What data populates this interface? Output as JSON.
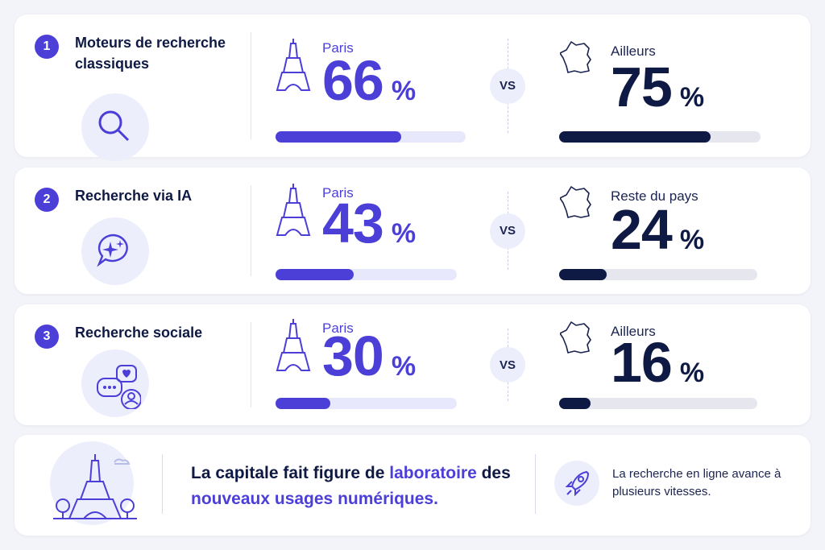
{
  "unit": "%",
  "vs": "VS",
  "rows": [
    {
      "number": "1",
      "title": "Moteurs de recherche classiques",
      "paris_label": "Paris",
      "paris_value": 66,
      "other_label": "Ailleurs",
      "other_value": 75
    },
    {
      "number": "2",
      "title": "Recherche via IA",
      "paris_label": "Paris",
      "paris_value": 43,
      "other_label": "Reste du pays",
      "other_value": 24
    },
    {
      "number": "3",
      "title": "Recherche sociale",
      "paris_label": "Paris",
      "paris_value": 30,
      "other_label": "Ailleurs",
      "other_value": 16
    }
  ],
  "footer": {
    "headline": [
      "La capitale fait figure de ",
      "laboratoire",
      " des ",
      "nouveaux usages numériques",
      "."
    ],
    "note": "La recherche en ligne avance à plusieurs vitesses."
  }
}
